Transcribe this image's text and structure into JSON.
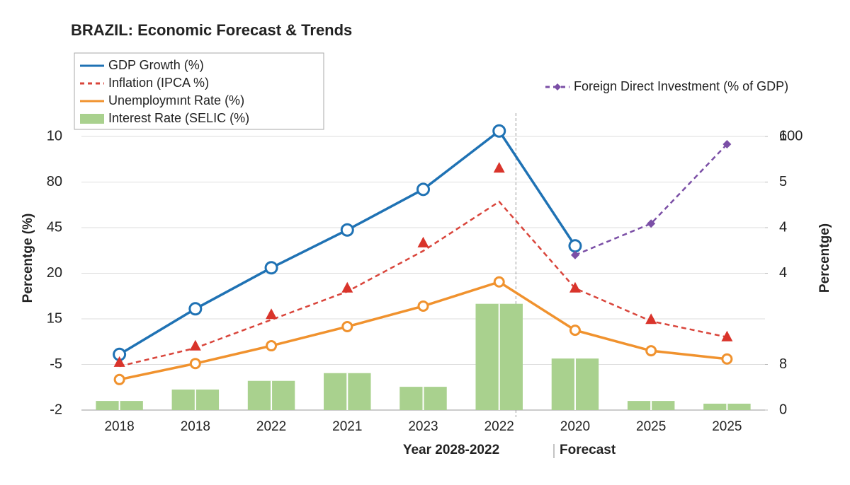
{
  "chart_data": {
    "type": "line",
    "title": "BRAZIL: Economic Forecast & Trends",
    "xlabel": "Year 2028-2022",
    "forecast_label": "Forecast",
    "ylabel": "Percentge (%)",
    "y2label": "Percentge)",
    "categories": [
      "2018",
      "2018",
      "2022",
      "2021",
      "2023",
      "2022",
      "2020",
      "2025",
      "2025"
    ],
    "ylim": [
      0,
      6.5
    ],
    "yticks": [
      {
        "value": 0,
        "label": "-2"
      },
      {
        "value": 1,
        "label": "-5"
      },
      {
        "value": 2,
        "label": "15"
      },
      {
        "value": 3,
        "label": "20"
      },
      {
        "value": 4,
        "label": "45"
      },
      {
        "value": 5,
        "label": "80"
      },
      {
        "value": 6,
        "label": "10"
      }
    ],
    "y2lim": [
      0,
      6.5
    ],
    "y2ticks": [
      0,
      {
        "value": 1,
        "label": "8"
      },
      4,
      {
        "value": 3,
        "label": "4"
      },
      5,
      6,
      {
        "value": 6,
        "label": "100"
      }
    ],
    "grid": true,
    "series": [
      {
        "name": "GDP Growth (%)",
        "color": "#1f72b4",
        "style": "line",
        "values": [
          1.22,
          2.22,
          3.12,
          3.95,
          4.84,
          6.12,
          3.6,
          null,
          null
        ]
      },
      {
        "name": "Inflation (IPCA %)",
        "color": "#d9453b",
        "style": "dashed",
        "values": [
          0.96,
          1.36,
          1.98,
          2.6,
          3.49,
          4.57,
          2.67,
          1.95,
          1.6
        ],
        "marker_values": [
          1.04,
          1.4,
          2.09,
          2.67,
          3.66,
          5.3,
          2.67,
          1.98,
          1.6
        ]
      },
      {
        "name": "Unemploymınt Rate (%)",
        "color": "#f0922e",
        "style": "line",
        "values": [
          0.67,
          1.02,
          1.41,
          1.83,
          2.28,
          2.81,
          1.75,
          1.3,
          1.12
        ]
      },
      {
        "name": "Interest   Rate (SELIC (%)",
        "color": "#a9d18e",
        "style": "bar",
        "values": [
          0.2,
          0.45,
          0.64,
          0.81,
          0.51,
          2.33,
          1.13,
          0.2,
          0.14
        ]
      },
      {
        "name": "Foreign Direct Investment (% of GDP)",
        "color": "#7b4fa6",
        "style": "dashed",
        "axis": "y2",
        "values": [
          null,
          null,
          null,
          null,
          null,
          null,
          3.4,
          4.09,
          5.83
        ]
      }
    ]
  }
}
